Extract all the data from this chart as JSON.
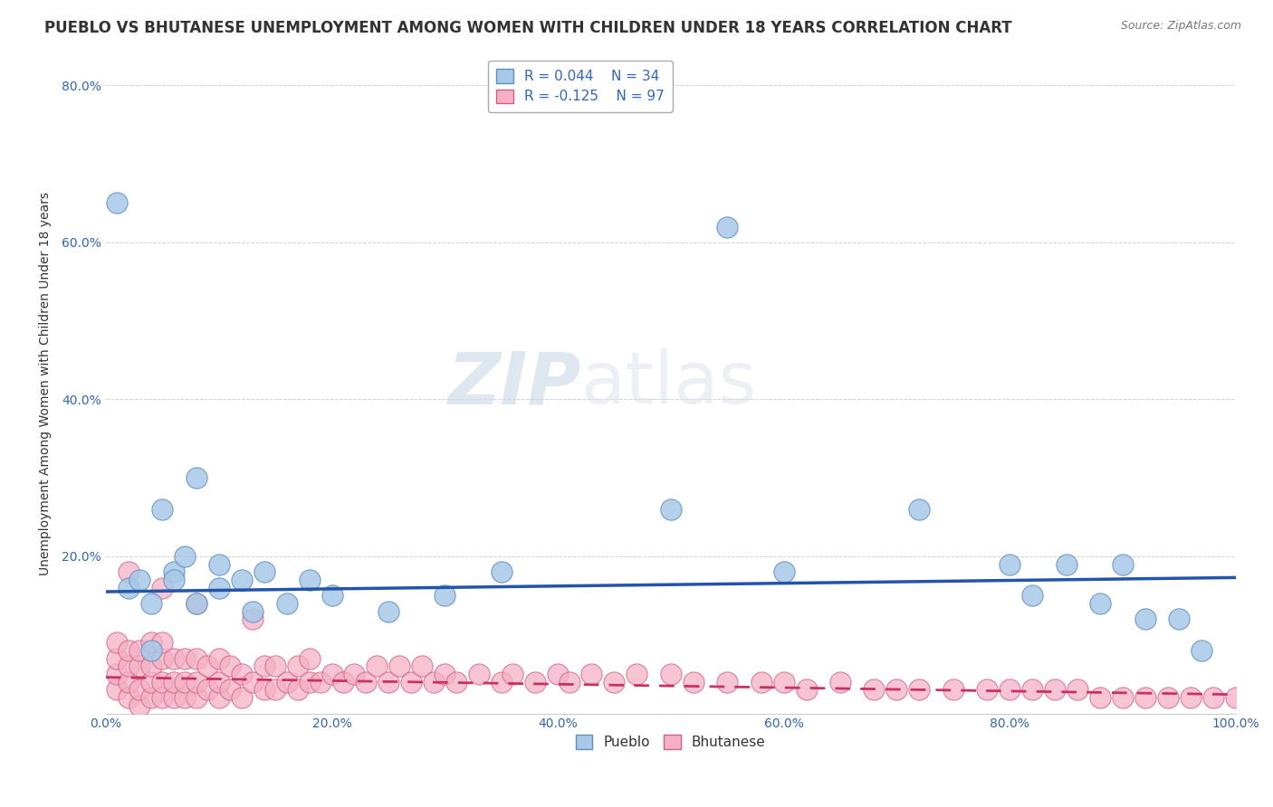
{
  "title": "PUEBLO VS BHUTANESE UNEMPLOYMENT AMONG WOMEN WITH CHILDREN UNDER 18 YEARS CORRELATION CHART",
  "source": "Source: ZipAtlas.com",
  "ylabel": "Unemployment Among Women with Children Under 18 years",
  "xlim": [
    0,
    1.0
  ],
  "ylim": [
    0,
    0.84
  ],
  "xticks": [
    0.0,
    0.2,
    0.4,
    0.6,
    0.8,
    1.0
  ],
  "xticklabels": [
    "0.0%",
    "20.0%",
    "40.0%",
    "60.0%",
    "80.0%",
    "100.0%"
  ],
  "yticks": [
    0.0,
    0.2,
    0.4,
    0.6,
    0.8
  ],
  "yticklabels": [
    "",
    "20.0%",
    "40.0%",
    "60.0%",
    "80.0%"
  ],
  "pueblo_color": "#a8c8e8",
  "bhutanese_color": "#f5b0c5",
  "pueblo_edge": "#6090c0",
  "bhutanese_edge": "#d06080",
  "trend_pueblo_color": "#2255aa",
  "trend_bhutanese_color": "#cc3060",
  "legend_pueblo_R": "R = 0.044",
  "legend_pueblo_N": "N = 34",
  "legend_bhutanese_R": "R = -0.125",
  "legend_bhutanese_N": "N = 97",
  "watermark_zip": "ZIP",
  "watermark_atlas": "atlas",
  "pueblo_x": [
    0.01,
    0.02,
    0.03,
    0.04,
    0.05,
    0.06,
    0.07,
    0.08,
    0.1,
    0.12,
    0.14,
    0.18,
    0.35,
    0.5,
    0.55,
    0.6,
    0.72,
    0.8,
    0.82,
    0.85,
    0.88,
    0.9,
    0.92,
    0.95,
    0.97,
    0.04,
    0.06,
    0.08,
    0.1,
    0.13,
    0.16,
    0.2,
    0.25,
    0.3
  ],
  "pueblo_y": [
    0.65,
    0.16,
    0.17,
    0.08,
    0.26,
    0.18,
    0.2,
    0.3,
    0.19,
    0.17,
    0.18,
    0.17,
    0.18,
    0.26,
    0.62,
    0.18,
    0.26,
    0.19,
    0.15,
    0.19,
    0.14,
    0.19,
    0.12,
    0.12,
    0.08,
    0.14,
    0.17,
    0.14,
    0.16,
    0.13,
    0.14,
    0.15,
    0.13,
    0.15
  ],
  "bhutanese_x": [
    0.01,
    0.01,
    0.01,
    0.01,
    0.02,
    0.02,
    0.02,
    0.02,
    0.03,
    0.03,
    0.03,
    0.03,
    0.04,
    0.04,
    0.04,
    0.04,
    0.05,
    0.05,
    0.05,
    0.05,
    0.06,
    0.06,
    0.06,
    0.07,
    0.07,
    0.07,
    0.08,
    0.08,
    0.08,
    0.09,
    0.09,
    0.1,
    0.1,
    0.1,
    0.11,
    0.11,
    0.12,
    0.12,
    0.13,
    0.14,
    0.14,
    0.15,
    0.15,
    0.16,
    0.17,
    0.17,
    0.18,
    0.18,
    0.19,
    0.2,
    0.21,
    0.22,
    0.23,
    0.24,
    0.25,
    0.26,
    0.27,
    0.28,
    0.29,
    0.3,
    0.31,
    0.33,
    0.35,
    0.36,
    0.38,
    0.4,
    0.41,
    0.43,
    0.45,
    0.47,
    0.5,
    0.52,
    0.55,
    0.58,
    0.6,
    0.62,
    0.65,
    0.68,
    0.7,
    0.72,
    0.75,
    0.78,
    0.8,
    0.82,
    0.84,
    0.86,
    0.88,
    0.9,
    0.92,
    0.94,
    0.96,
    0.98,
    1.0,
    0.02,
    0.05,
    0.08,
    0.13
  ],
  "bhutanese_y": [
    0.03,
    0.05,
    0.07,
    0.09,
    0.02,
    0.04,
    0.06,
    0.08,
    0.01,
    0.03,
    0.06,
    0.08,
    0.02,
    0.04,
    0.06,
    0.09,
    0.02,
    0.04,
    0.07,
    0.09,
    0.02,
    0.04,
    0.07,
    0.02,
    0.04,
    0.07,
    0.02,
    0.04,
    0.07,
    0.03,
    0.06,
    0.02,
    0.04,
    0.07,
    0.03,
    0.06,
    0.02,
    0.05,
    0.04,
    0.03,
    0.06,
    0.03,
    0.06,
    0.04,
    0.03,
    0.06,
    0.04,
    0.07,
    0.04,
    0.05,
    0.04,
    0.05,
    0.04,
    0.06,
    0.04,
    0.06,
    0.04,
    0.06,
    0.04,
    0.05,
    0.04,
    0.05,
    0.04,
    0.05,
    0.04,
    0.05,
    0.04,
    0.05,
    0.04,
    0.05,
    0.05,
    0.04,
    0.04,
    0.04,
    0.04,
    0.03,
    0.04,
    0.03,
    0.03,
    0.03,
    0.03,
    0.03,
    0.03,
    0.03,
    0.03,
    0.03,
    0.02,
    0.02,
    0.02,
    0.02,
    0.02,
    0.02,
    0.02,
    0.18,
    0.16,
    0.14,
    0.12
  ],
  "title_fontsize": 12,
  "axis_label_fontsize": 10,
  "tick_fontsize": 10,
  "legend_fontsize": 11
}
